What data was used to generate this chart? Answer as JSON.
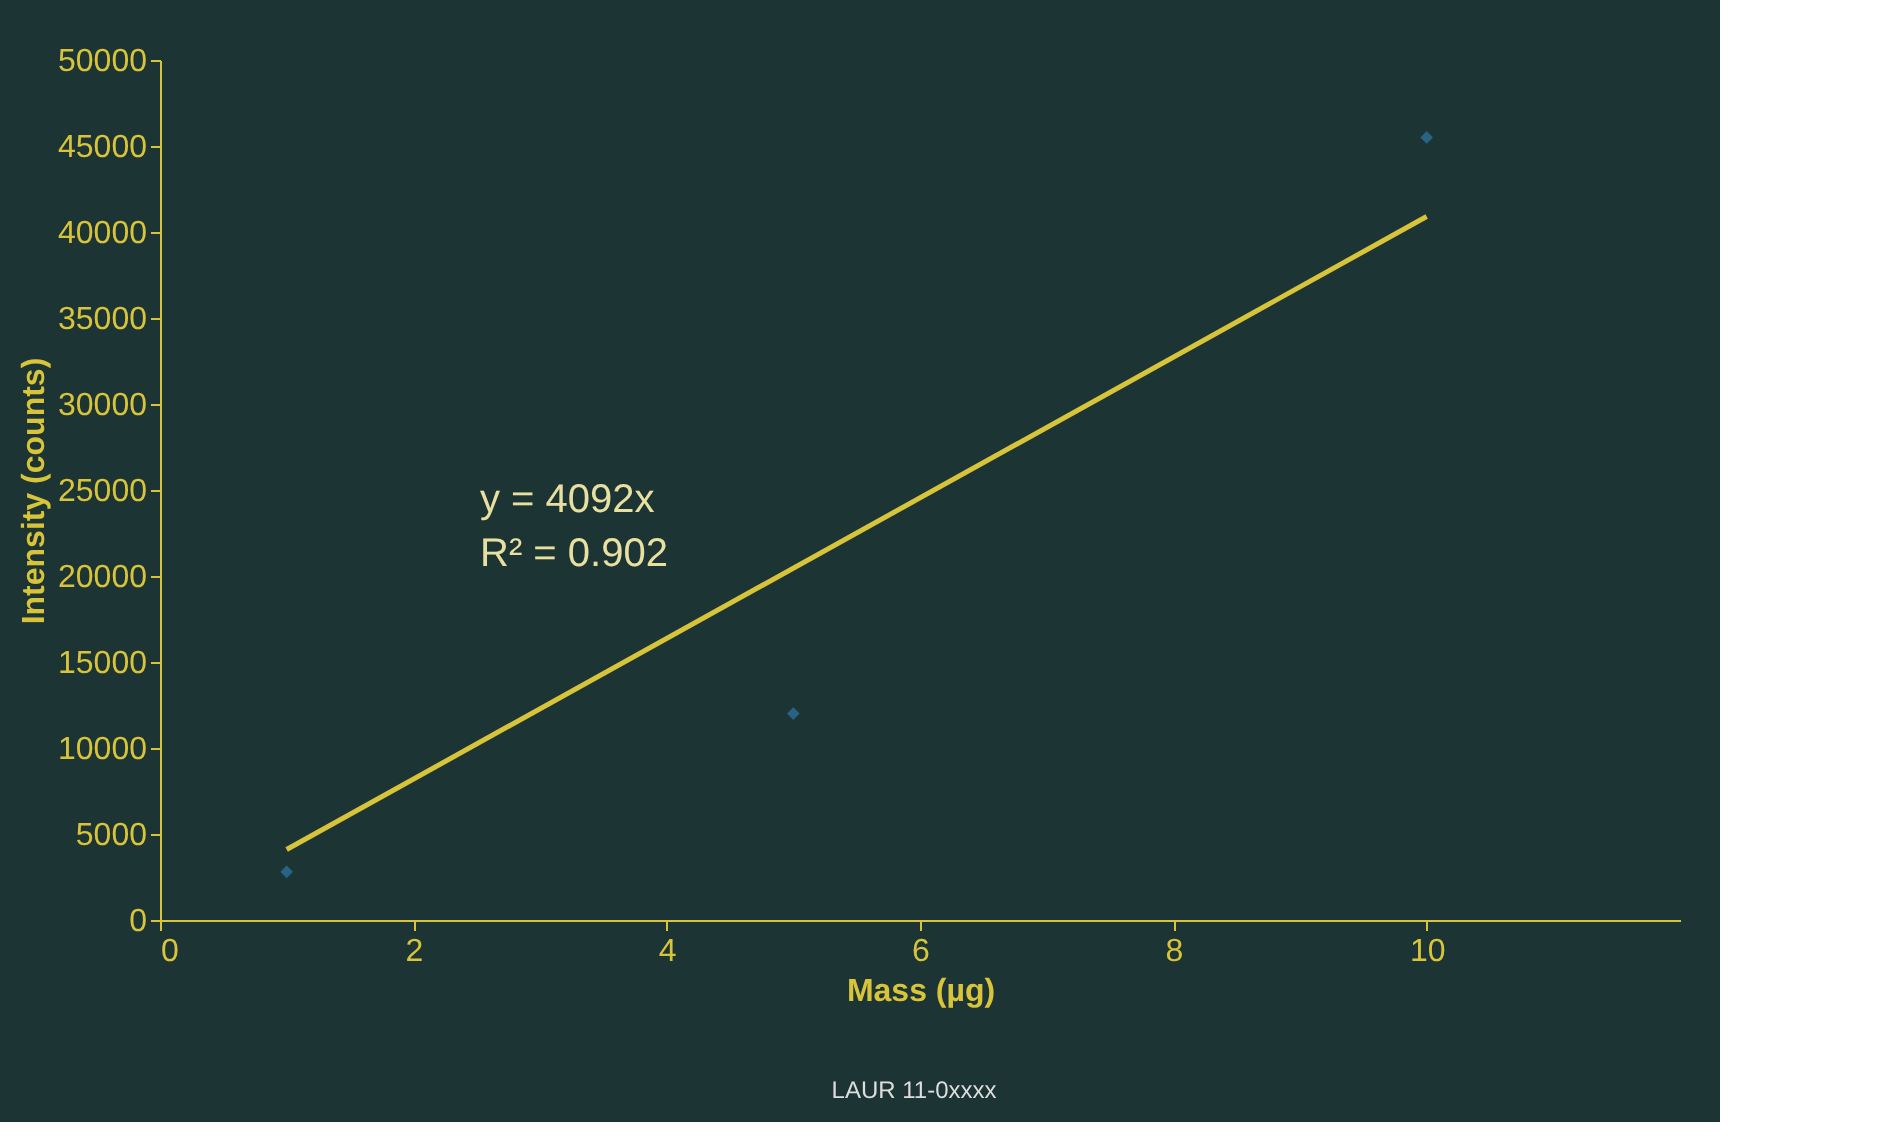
{
  "chart_data": {
    "type": "scatter",
    "xlabel": "Mass (µg)",
    "ylabel": "Intensity (counts)",
    "xlim": [
      0,
      12
    ],
    "xticks": [
      0,
      2,
      4,
      6,
      8,
      10
    ],
    "ylim": [
      0,
      50000
    ],
    "yticks": [
      0,
      5000,
      10000,
      15000,
      20000,
      25000,
      30000,
      35000,
      40000,
      45000,
      50000
    ],
    "grid": false,
    "series": [
      {
        "color": "#2e76a6",
        "marker": "diamond",
        "x": [
          1,
          5,
          10
        ],
        "values": [
          2800,
          12000,
          45500
        ]
      },
      {
        "type": "line",
        "color": "#d8c43a",
        "x": [
          1,
          10
        ],
        "values": [
          4100,
          40900
        ],
        "line_style": "solid"
      }
    ],
    "annotations": [
      "y = 4092x",
      "R² = 0.902",
      "LAUR 11-0xxxx"
    ]
  }
}
